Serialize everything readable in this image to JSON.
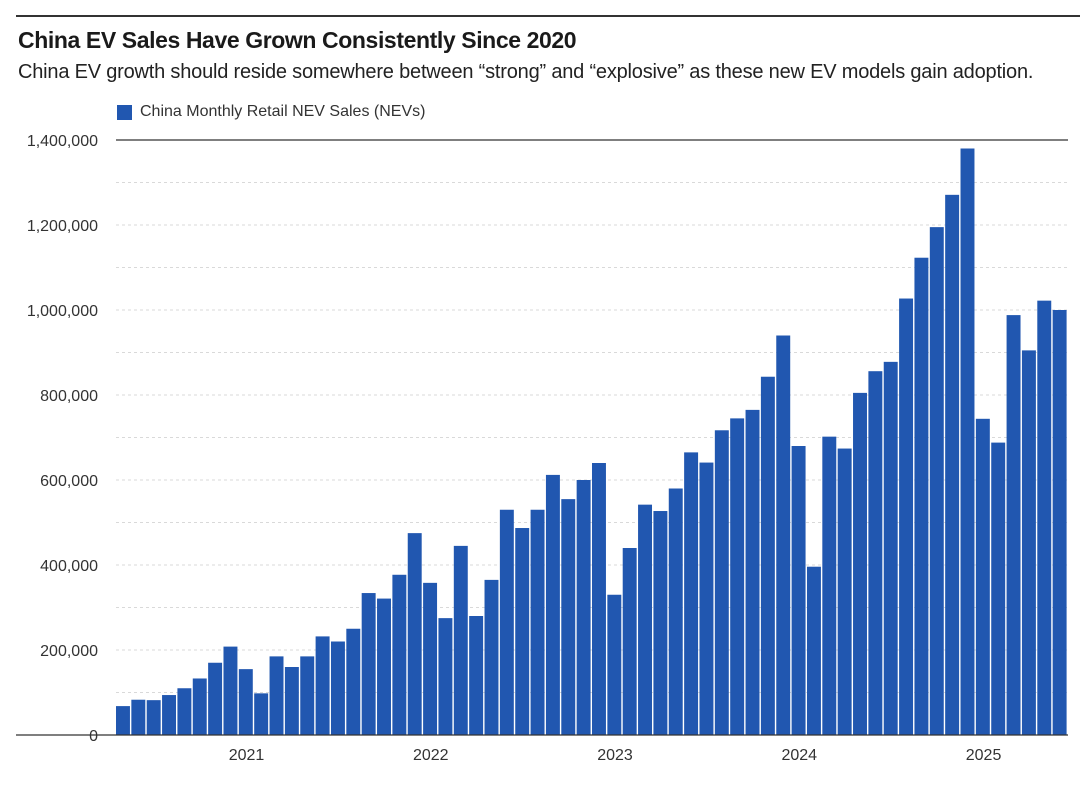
{
  "chart_data": {
    "type": "bar",
    "title": "China EV Sales Have Grown Consistently Since 2020",
    "subtitle": "China EV growth should reside somewhere between “strong” and “explosive” as these new EV models gain adoption.",
    "xlabel": "",
    "ylabel": "",
    "ylim": [
      0,
      1400000
    ],
    "grid": true,
    "legend_placement": "top-left",
    "colors": {
      "bar": "#2157b0",
      "axis": "#333333",
      "grid": "#d9d9d9"
    },
    "y_ticks": [
      {
        "value": 0,
        "label": "0"
      },
      {
        "value": 200000,
        "label": "200,000"
      },
      {
        "value": 400000,
        "label": "400,000"
      },
      {
        "value": 600000,
        "label": "600,000"
      },
      {
        "value": 800000,
        "label": "800,000"
      },
      {
        "value": 1000000,
        "label": "1,000,000"
      },
      {
        "value": 1200000,
        "label": "1,200,000"
      },
      {
        "value": 1400000,
        "label": "1,400,000"
      }
    ],
    "x_ticks": [
      {
        "date": "2021-01",
        "label": "2021"
      },
      {
        "date": "2022-01",
        "label": "2022"
      },
      {
        "date": "2023-01",
        "label": "2023"
      },
      {
        "date": "2024-01",
        "label": "2024"
      },
      {
        "date": "2025-01",
        "label": "2025"
      }
    ],
    "categories": [
      "2020-05",
      "2020-06",
      "2020-07",
      "2020-08",
      "2020-09",
      "2020-10",
      "2020-11",
      "2020-12",
      "2021-01",
      "2021-02",
      "2021-03",
      "2021-04",
      "2021-05",
      "2021-06",
      "2021-07",
      "2021-08",
      "2021-09",
      "2021-10",
      "2021-11",
      "2021-12",
      "2022-01",
      "2022-02",
      "2022-03",
      "2022-04",
      "2022-05",
      "2022-06",
      "2022-07",
      "2022-08",
      "2022-09",
      "2022-10",
      "2022-11",
      "2022-12",
      "2023-01",
      "2023-02",
      "2023-03",
      "2023-04",
      "2023-05",
      "2023-06",
      "2023-07",
      "2023-08",
      "2023-09",
      "2023-10",
      "2023-11",
      "2023-12",
      "2024-01",
      "2024-02",
      "2024-03",
      "2024-04",
      "2024-05",
      "2024-06",
      "2024-07",
      "2024-08",
      "2024-09",
      "2024-10",
      "2024-11",
      "2024-12",
      "2025-01",
      "2025-02",
      "2025-03",
      "2025-04",
      "2025-05",
      "2025-06"
    ],
    "series": [
      {
        "name": "China Monthly Retail NEV Sales (NEVs)",
        "values": [
          68000,
          83000,
          82000,
          94000,
          110000,
          133000,
          170000,
          208000,
          155000,
          98000,
          185000,
          160000,
          185000,
          232000,
          220000,
          250000,
          334000,
          321000,
          377000,
          475000,
          358000,
          275000,
          445000,
          280000,
          365000,
          530000,
          487000,
          530000,
          612000,
          555000,
          600000,
          640000,
          330000,
          440000,
          542000,
          527000,
          580000,
          665000,
          641000,
          717000,
          745000,
          765000,
          843000,
          940000,
          680000,
          396000,
          702000,
          674000,
          805000,
          856000,
          878000,
          1027000,
          1123000,
          1195000,
          1271000,
          1380000,
          744000,
          688000,
          988000,
          905000,
          1022000,
          1000000
        ]
      }
    ]
  }
}
